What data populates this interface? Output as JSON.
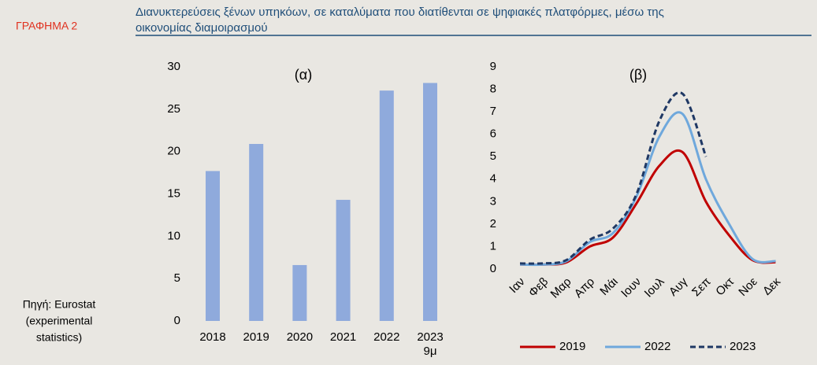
{
  "label": "ΓΡΑΦΗΜΑ 2",
  "source": [
    "Πηγή: Eurostat",
    "(experimental",
    "statistics)"
  ],
  "title": [
    "Διανυκτερεύσεις ξένων υπηκόων, σε καταλύματα που διατίθενται σε ψηφιακές πλατφόρμες, μέσω της",
    "οικονομίας διαμοιρασμού"
  ],
  "chart_data": [
    {
      "type": "bar",
      "title": "(α)",
      "categories": [
        "2018",
        "2019",
        "2020",
        "2021",
        "2022",
        "2023\n9μ"
      ],
      "values": [
        17.7,
        20.9,
        6.6,
        14.3,
        27.2,
        28.1
      ],
      "color": "#8faadc",
      "ylim": [
        0,
        30
      ],
      "yticks": [
        0,
        5,
        10,
        15,
        20,
        25,
        30
      ]
    },
    {
      "type": "line",
      "title": "(β)",
      "categories": [
        "Ιαν",
        "Φεβ",
        "Μαρ",
        "Απρ",
        "Μάι",
        "Ιουν",
        "Ιουλ",
        "Αυγ",
        "Σεπ",
        "Οκτ",
        "Νοε",
        "Δεκ"
      ],
      "series": [
        {
          "name": "2019",
          "color": "#c00000",
          "dash": false,
          "values": [
            0.2,
            0.2,
            0.3,
            1.0,
            1.4,
            2.9,
            4.6,
            5.2,
            3.0,
            1.5,
            0.4,
            0.3
          ]
        },
        {
          "name": "2022",
          "color": "#6fa8dc",
          "dash": false,
          "values": [
            0.2,
            0.2,
            0.35,
            1.2,
            1.6,
            3.2,
            5.9,
            6.9,
            4.0,
            2.0,
            0.45,
            0.35
          ]
        },
        {
          "name": "2023",
          "color": "#1f3864",
          "dash": true,
          "values": [
            0.25,
            0.25,
            0.4,
            1.3,
            1.8,
            3.3,
            6.6,
            7.8,
            5.0,
            null,
            null,
            null
          ]
        }
      ],
      "ylim": [
        0,
        9
      ],
      "yticks": [
        0,
        1,
        2,
        3,
        4,
        5,
        6,
        7,
        8,
        9
      ],
      "legend": "bottom"
    }
  ]
}
